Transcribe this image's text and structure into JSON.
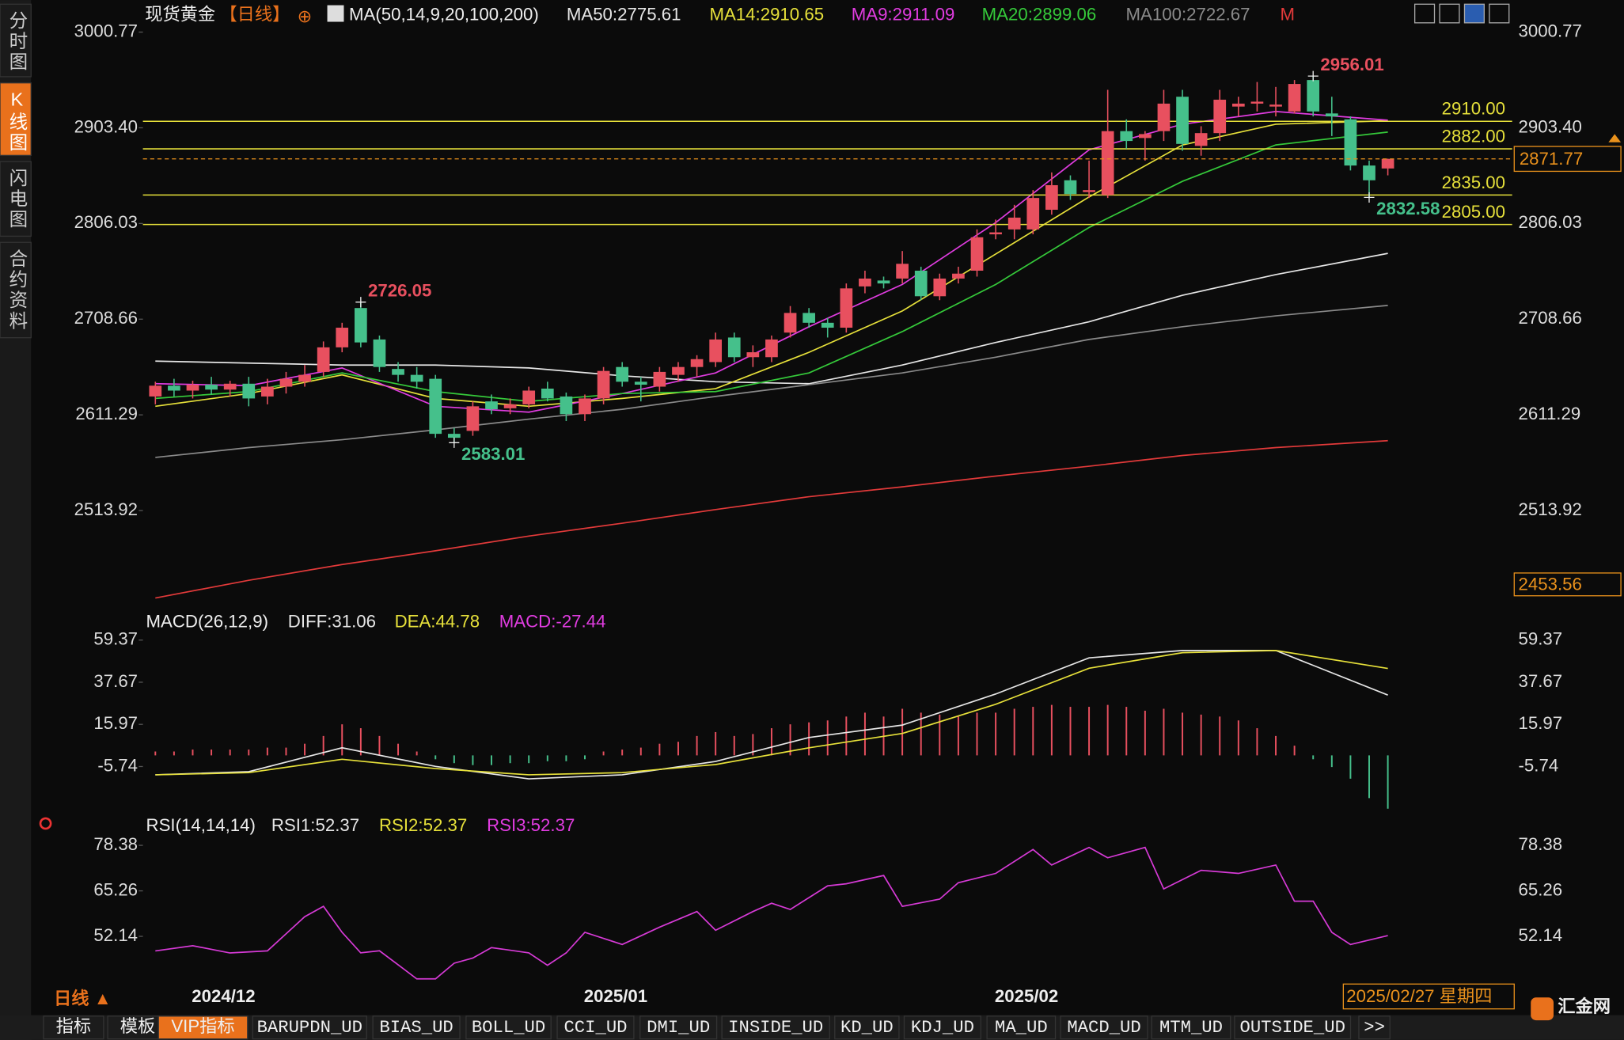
{
  "ui": {
    "side_tabs": [
      "分时图",
      "K线图",
      "闪电图",
      "合约资料"
    ],
    "active_tab": 1,
    "symbol": "现货黄金",
    "period": "【日线】",
    "add": "⊕",
    "indicator": "MA(50,14,9,20,100,200)",
    "m_label": "M",
    "bottom_period": "日线 ▲",
    "bottom_tabs": [
      "指标",
      "模板",
      "VIP指标",
      "BARUPDN_UD",
      "BIAS_UD",
      "BOLL_UD",
      "CCI_UD",
      "DMI_UD",
      "INSIDE_UD",
      "KD_UD",
      "KDJ_UD",
      "MA_UD",
      "MACD_UD",
      "MTM_UD",
      "OUTSIDE_UD",
      ">>"
    ],
    "active_bottom_tab": 2,
    "date": "2025/02/27 星期四",
    "logo": "汇金网"
  },
  "chart_data": [
    {
      "type": "candlestick",
      "up_color": "#e8505f",
      "down_color": "#45c08b",
      "ylim": [
        2420,
        3010
      ],
      "yticks": [
        3000.77,
        2903.4,
        2806.03,
        2708.66,
        2611.29,
        2513.92
      ],
      "ytick_labels": [
        "3000.77",
        "2903.40",
        "2806.03",
        "2708.66",
        "2611.29",
        "2513.92"
      ],
      "low_marker": {
        "value": 2453.56,
        "label": "2453.56"
      },
      "x_labels": [
        {
          "index": 4,
          "label": "2024/12"
        },
        {
          "index": 25,
          "label": "2025/01"
        },
        {
          "index": 47,
          "label": "2025/02"
        }
      ],
      "ohlc": [
        [
          2630,
          2645,
          2622,
          2641
        ],
        [
          2641,
          2648,
          2630,
          2636
        ],
        [
          2636,
          2646,
          2628,
          2642
        ],
        [
          2642,
          2650,
          2632,
          2637
        ],
        [
          2637,
          2646,
          2630,
          2643
        ],
        [
          2643,
          2650,
          2620,
          2628
        ],
        [
          2630,
          2648,
          2622,
          2640
        ],
        [
          2640,
          2655,
          2633,
          2648
        ],
        [
          2645,
          2662,
          2640,
          2652
        ],
        [
          2655,
          2686,
          2650,
          2680
        ],
        [
          2680,
          2705,
          2675,
          2700
        ],
        [
          2720,
          2726.05,
          2680,
          2685
        ],
        [
          2688,
          2692,
          2655,
          2660
        ],
        [
          2658,
          2665,
          2645,
          2652
        ],
        [
          2652,
          2660,
          2638,
          2645
        ],
        [
          2648,
          2652,
          2588,
          2592
        ],
        [
          2592,
          2598,
          2583.01,
          2588
        ],
        [
          2595,
          2625,
          2590,
          2620
        ],
        [
          2625,
          2632,
          2612,
          2617
        ],
        [
          2618,
          2628,
          2612,
          2622
        ],
        [
          2622,
          2640,
          2618,
          2636
        ],
        [
          2638,
          2645,
          2625,
          2628
        ],
        [
          2630,
          2634,
          2605,
          2612
        ],
        [
          2612,
          2632,
          2605,
          2628
        ],
        [
          2628,
          2660,
          2622,
          2656
        ],
        [
          2660,
          2665,
          2640,
          2645
        ],
        [
          2645,
          2650,
          2625,
          2642
        ],
        [
          2640,
          2660,
          2635,
          2655
        ],
        [
          2652,
          2665,
          2645,
          2660
        ],
        [
          2660,
          2672,
          2650,
          2668
        ],
        [
          2665,
          2695,
          2660,
          2688
        ],
        [
          2690,
          2695,
          2665,
          2670
        ],
        [
          2670,
          2682,
          2660,
          2675
        ],
        [
          2670,
          2692,
          2665,
          2688
        ],
        [
          2695,
          2722,
          2690,
          2715
        ],
        [
          2715,
          2720,
          2700,
          2705
        ],
        [
          2705,
          2710,
          2690,
          2700
        ],
        [
          2700,
          2745,
          2695,
          2740
        ],
        [
          2742,
          2758,
          2735,
          2750
        ],
        [
          2748,
          2752,
          2740,
          2745
        ],
        [
          2750,
          2778,
          2745,
          2765
        ],
        [
          2758,
          2762,
          2728,
          2732
        ],
        [
          2732,
          2755,
          2728,
          2750
        ],
        [
          2750,
          2762,
          2745,
          2755
        ],
        [
          2758,
          2800,
          2752,
          2792
        ],
        [
          2795,
          2810,
          2790,
          2797
        ],
        [
          2800,
          2825,
          2790,
          2812
        ],
        [
          2800,
          2840,
          2795,
          2832
        ],
        [
          2820,
          2858,
          2815,
          2845
        ],
        [
          2850,
          2855,
          2830,
          2836
        ],
        [
          2838,
          2870,
          2832,
          2840
        ],
        [
          2835,
          2942,
          2832,
          2900
        ],
        [
          2900,
          2912,
          2882,
          2890
        ],
        [
          2893,
          2900,
          2870,
          2897
        ],
        [
          2900,
          2942,
          2890,
          2928
        ],
        [
          2935,
          2942,
          2880,
          2887
        ],
        [
          2885,
          2905,
          2875,
          2898
        ],
        [
          2898,
          2942,
          2890,
          2932
        ],
        [
          2925,
          2935,
          2915,
          2928
        ],
        [
          2928,
          2950,
          2920,
          2930
        ],
        [
          2925,
          2945,
          2915,
          2927
        ],
        [
          2920,
          2952,
          2918,
          2948
        ],
        [
          2952,
          2956.01,
          2915,
          2920
        ],
        [
          2918,
          2935,
          2895,
          2915
        ],
        [
          2912,
          2915,
          2860,
          2865
        ],
        [
          2865,
          2870,
          2832.58,
          2850
        ],
        [
          2862,
          2872,
          2855,
          2871.77
        ]
      ],
      "ma": [
        {
          "name": "MA50",
          "legend": "MA50:2775.61",
          "color": "#e6e6e6",
          "x": [
            0,
            5,
            10,
            15,
            20,
            25,
            30,
            35,
            40,
            45,
            50,
            55,
            60,
            66
          ],
          "values": [
            2666,
            2664,
            2662,
            2662,
            2659,
            2651,
            2645,
            2643,
            2662,
            2685,
            2706,
            2733,
            2754,
            2775.61
          ]
        },
        {
          "name": "MA14",
          "legend": "MA14:2910.65",
          "color": "#e6e03a",
          "x": [
            0,
            5,
            10,
            15,
            20,
            25,
            30,
            35,
            40,
            45,
            50,
            55,
            60,
            66
          ],
          "values": [
            2620,
            2633,
            2652,
            2628,
            2620,
            2628,
            2638,
            2675,
            2717,
            2775,
            2833,
            2886,
            2907,
            2910.65
          ]
        },
        {
          "name": "MA9",
          "legend": "MA9:2911.09",
          "color": "#e03ce0",
          "x": [
            0,
            5,
            10,
            15,
            20,
            25,
            30,
            35,
            40,
            45,
            50,
            55,
            60,
            66
          ],
          "values": [
            2643,
            2641,
            2659,
            2620,
            2614,
            2633,
            2654,
            2701,
            2744,
            2807,
            2881,
            2907,
            2920,
            2911.09
          ]
        },
        {
          "name": "MA20",
          "legend": "MA20:2899.06",
          "color": "#35c93a",
          "x": [
            0,
            5,
            10,
            15,
            20,
            25,
            30,
            35,
            40,
            45,
            50,
            55,
            60,
            66
          ],
          "values": [
            2628,
            2635,
            2654,
            2635,
            2625,
            2633,
            2635,
            2654,
            2696,
            2744,
            2802,
            2849,
            2886,
            2899.06
          ]
        },
        {
          "name": "MA100",
          "legend": "MA100:2722.67",
          "color": "#8a8a8a",
          "x": [
            0,
            5,
            10,
            15,
            20,
            25,
            30,
            35,
            40,
            45,
            50,
            55,
            60,
            66
          ],
          "values": [
            2568,
            2578,
            2586,
            2596,
            2607,
            2617,
            2630,
            2642,
            2654,
            2670,
            2688,
            2701,
            2712,
            2722.67
          ]
        },
        {
          "name": "MA200",
          "color": "#e23a3a",
          "x": [
            0,
            5,
            10,
            15,
            20,
            25,
            30,
            35,
            40,
            45,
            50,
            55,
            60,
            66
          ],
          "values": [
            2425,
            2443,
            2459,
            2473,
            2488,
            2501,
            2515,
            2528,
            2538,
            2549,
            2559,
            2570,
            2578,
            2585
          ]
        }
      ],
      "levels": [
        {
          "value": 2910,
          "label": "2910.00"
        },
        {
          "value": 2882,
          "label": "2882.00"
        },
        {
          "value": 2835,
          "label": "2835.00"
        },
        {
          "value": 2805,
          "label": "2805.00"
        }
      ],
      "current": {
        "value": 2871.77,
        "label": "2871.77"
      },
      "annotations": [
        {
          "index": 62,
          "value": 2956.01,
          "label": "2956.01",
          "kind": "high"
        },
        {
          "index": 11,
          "value": 2726.05,
          "label": "2726.05",
          "kind": "high"
        },
        {
          "index": 16,
          "value": 2583.01,
          "label": "2583.01",
          "kind": "low"
        },
        {
          "index": 65,
          "value": 2832.58,
          "label": "2832.58",
          "kind": "low"
        }
      ]
    },
    {
      "type": "macd",
      "title": "MACD(26,12,9)",
      "ylim": [
        -30,
        66
      ],
      "yticks": [
        59.37,
        37.67,
        15.97,
        -5.74
      ],
      "legend": [
        {
          "label": "DIFF:31.06",
          "color": "#e6e6e6"
        },
        {
          "label": "DEA:44.78",
          "color": "#e6e03a"
        },
        {
          "label": "MACD:-27.44",
          "color": "#e03ce0"
        }
      ],
      "histogram": [
        2,
        2,
        3,
        3,
        3,
        3,
        4,
        4,
        6,
        10,
        16,
        14,
        10,
        6,
        2,
        -2,
        -4,
        -5,
        -5,
        -4,
        -4,
        -3,
        -3,
        -2,
        2,
        3,
        4,
        6,
        7,
        10,
        12,
        10,
        11,
        14,
        16,
        17,
        18,
        20,
        22,
        20,
        24,
        22,
        21,
        20,
        22,
        22,
        24,
        25,
        26,
        25,
        25,
        26,
        25,
        23,
        24,
        22,
        21,
        20,
        18,
        14,
        10,
        5,
        -2,
        -6,
        -12,
        -22,
        -27.44
      ],
      "series": [
        {
          "name": "DIFF",
          "color": "#e6e6e6",
          "x": [
            0,
            5,
            10,
            15,
            20,
            25,
            30,
            35,
            40,
            45,
            50,
            55,
            60,
            66
          ],
          "values": [
            -10.0,
            -8.4,
            3.9,
            -5.7,
            -12.1,
            -10.0,
            -3.1,
            9.2,
            15.6,
            31.6,
            50.2,
            54.0,
            54.0,
            31.06
          ]
        },
        {
          "name": "DEA",
          "color": "#e6e03a",
          "x": [
            0,
            5,
            10,
            15,
            20,
            25,
            30,
            35,
            40,
            45,
            50,
            55,
            60,
            66
          ],
          "values": [
            -10.0,
            -8.9,
            -2.0,
            -6.8,
            -10.0,
            -8.9,
            -4.7,
            3.9,
            11.3,
            26.3,
            44.9,
            52.9,
            54.0,
            44.78
          ]
        }
      ]
    },
    {
      "type": "rsi",
      "title": "RSI(14,14,14)",
      "ylim": [
        38.4,
        81.7
      ],
      "yticks": [
        78.38,
        65.26,
        52.14
      ],
      "legend": [
        {
          "label": "RSI1:52.37",
          "color": "#e6e6e6"
        },
        {
          "label": "RSI2:52.37",
          "color": "#e6e03a"
        },
        {
          "label": "RSI3:52.37",
          "color": "#e03ce0"
        }
      ],
      "series": [
        {
          "color": "#d63ad6",
          "x": [
            0,
            2,
            4,
            6,
            8,
            9,
            10,
            11,
            12,
            14,
            15,
            16,
            17,
            18,
            20,
            21,
            22,
            23,
            25,
            27,
            29,
            30,
            32,
            33,
            34,
            36,
            37,
            39,
            40,
            42,
            43,
            45,
            47,
            48,
            50,
            51,
            53,
            54,
            56,
            58,
            60,
            61,
            62,
            63,
            64,
            66
          ],
          "values": [
            47.97,
            49.46,
            47.37,
            47.97,
            57.8,
            60.8,
            53.3,
            47.4,
            48.0,
            39.9,
            39.9,
            44.4,
            45.9,
            48.9,
            47.4,
            43.8,
            47.4,
            53.3,
            49.8,
            54.8,
            59.3,
            53.9,
            59.3,
            61.7,
            59.9,
            66.7,
            67.3,
            69.7,
            60.8,
            62.9,
            67.6,
            70.3,
            77.2,
            72.7,
            77.8,
            74.8,
            77.8,
            65.8,
            71.2,
            70.3,
            72.7,
            62.3,
            62.3,
            53.3,
            49.8,
            52.37
          ]
        }
      ]
    }
  ]
}
